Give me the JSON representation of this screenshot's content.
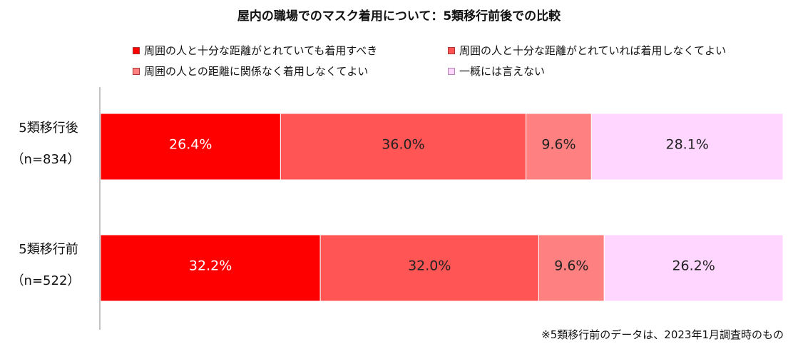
{
  "chart_data": {
    "type": "bar",
    "orientation": "horizontal",
    "stacked": true,
    "title": "屋内の職場でのマスク着用について：5類移行前後での比較",
    "categories": [
      {
        "label": "5類移行後",
        "sublabel": "（n=834）"
      },
      {
        "label": "5類移行前",
        "sublabel": "（n=522）"
      }
    ],
    "series": [
      {
        "name": "周囲の人と十分な距離がとれていても着用すべき",
        "color": "#ff0000",
        "values": [
          26.4,
          32.2
        ],
        "labels": [
          "26.4%",
          "32.2%"
        ]
      },
      {
        "name": "周囲の人と十分な距離がとれていれば着用しなくてよい",
        "color": "#ff5555",
        "values": [
          36.0,
          32.0
        ],
        "labels": [
          "36.0%",
          "32.0%"
        ]
      },
      {
        "name": "周囲の人との距離に関係なく着用しなくてよい",
        "color": "#ff8080",
        "values": [
          9.6,
          9.6
        ],
        "labels": [
          "9.6%",
          "9.6%"
        ]
      },
      {
        "name": "一概には言えない",
        "color": "#ffd6ff",
        "values": [
          28.1,
          26.2
        ],
        "labels": [
          "28.1%",
          "26.2%"
        ]
      }
    ],
    "xlim": [
      0,
      100
    ],
    "legend_position": "top",
    "grid": false,
    "footnote": "※5類移行前のデータは、2023年1月調査時のもの"
  }
}
